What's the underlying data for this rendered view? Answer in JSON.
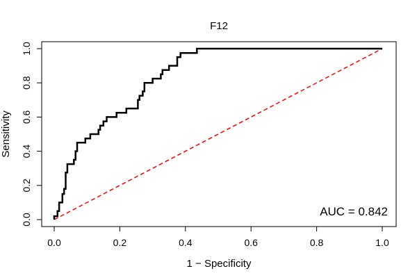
{
  "chart_data": {
    "type": "line",
    "title": "F12",
    "xlabel": "1 − Specificity",
    "ylabel": "Sensitivity",
    "xlim": [
      0,
      1
    ],
    "ylim": [
      0,
      1
    ],
    "x_ticks": [
      "0.0",
      "0.2",
      "0.4",
      "0.6",
      "0.8",
      "1.0"
    ],
    "y_ticks": [
      "0.0",
      "0.2",
      "0.4",
      "0.6",
      "0.8",
      "1.0"
    ],
    "grid": false,
    "legend": "none",
    "annotation": "AUC = 0.842",
    "roc_color": "#000000",
    "reference_color": "#ff0000",
    "series": [
      {
        "points": [
          [
            0.0,
            0.0
          ],
          [
            0.0,
            0.02
          ],
          [
            0.01,
            0.02
          ],
          [
            0.01,
            0.05
          ],
          [
            0.015,
            0.05
          ],
          [
            0.015,
            0.1
          ],
          [
            0.025,
            0.1
          ],
          [
            0.025,
            0.15
          ],
          [
            0.03,
            0.15
          ],
          [
            0.03,
            0.18
          ],
          [
            0.035,
            0.18
          ],
          [
            0.035,
            0.275
          ],
          [
            0.04,
            0.275
          ],
          [
            0.04,
            0.325
          ],
          [
            0.06,
            0.325
          ],
          [
            0.06,
            0.35
          ],
          [
            0.065,
            0.35
          ],
          [
            0.065,
            0.4
          ],
          [
            0.07,
            0.4
          ],
          [
            0.07,
            0.45
          ],
          [
            0.095,
            0.45
          ],
          [
            0.095,
            0.475
          ],
          [
            0.11,
            0.475
          ],
          [
            0.11,
            0.5
          ],
          [
            0.135,
            0.5
          ],
          [
            0.135,
            0.525
          ],
          [
            0.14,
            0.525
          ],
          [
            0.14,
            0.55
          ],
          [
            0.15,
            0.55
          ],
          [
            0.15,
            0.575
          ],
          [
            0.16,
            0.575
          ],
          [
            0.16,
            0.6
          ],
          [
            0.19,
            0.6
          ],
          [
            0.19,
            0.625
          ],
          [
            0.22,
            0.625
          ],
          [
            0.22,
            0.65
          ],
          [
            0.255,
            0.65
          ],
          [
            0.255,
            0.7
          ],
          [
            0.26,
            0.7
          ],
          [
            0.26,
            0.725
          ],
          [
            0.27,
            0.725
          ],
          [
            0.27,
            0.75
          ],
          [
            0.275,
            0.75
          ],
          [
            0.275,
            0.8
          ],
          [
            0.3,
            0.8
          ],
          [
            0.3,
            0.825
          ],
          [
            0.325,
            0.825
          ],
          [
            0.325,
            0.85
          ],
          [
            0.33,
            0.85
          ],
          [
            0.33,
            0.875
          ],
          [
            0.35,
            0.875
          ],
          [
            0.35,
            0.9
          ],
          [
            0.375,
            0.9
          ],
          [
            0.375,
            0.95
          ],
          [
            0.385,
            0.95
          ],
          [
            0.385,
            0.975
          ],
          [
            0.435,
            0.975
          ],
          [
            0.435,
            1.0
          ],
          [
            1.0,
            1.0
          ]
        ]
      }
    ],
    "reference_line": [
      [
        0,
        0
      ],
      [
        1,
        1
      ]
    ]
  }
}
